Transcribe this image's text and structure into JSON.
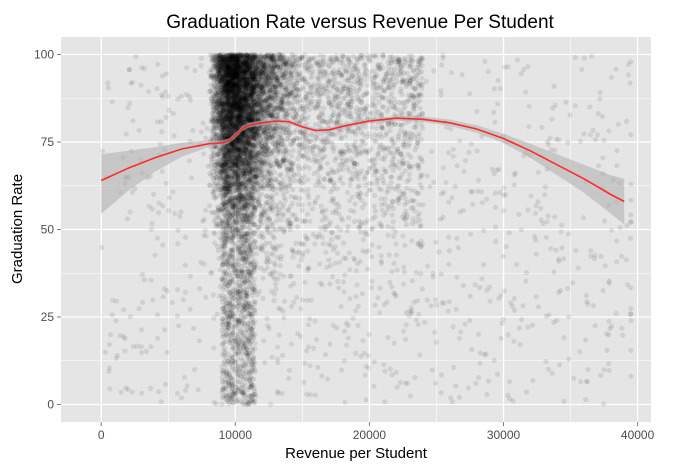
{
  "chart_data": {
    "type": "scatter",
    "title": "Graduation Rate versus Revenue Per Student",
    "xlabel": "Revenue per Student",
    "ylabel": "Graduation Rate",
    "xlim": [
      -3000,
      41000
    ],
    "ylim": [
      -5,
      105
    ],
    "x_ticks": [
      0,
      10000,
      20000,
      30000,
      40000
    ],
    "x_tick_labels": [
      "0",
      "10000",
      "20000",
      "30000",
      "40000"
    ],
    "y_ticks": [
      0,
      25,
      50,
      75,
      100
    ],
    "y_tick_labels": [
      "0",
      "25",
      "50",
      "75",
      "100"
    ],
    "grid": true,
    "legend": "none",
    "colors": {
      "panel": "#e5e5e5",
      "grid": "#ffffff",
      "points": "#000000",
      "smooth_line": "#ff2a2a",
      "confidence_band": "#b3b3b3"
    },
    "smooth_line": {
      "x": [
        0,
        2000,
        4000,
        6000,
        8000,
        9000,
        9500,
        10000,
        10500,
        11000,
        12000,
        13000,
        14000,
        15000,
        16000,
        17000,
        18000,
        20000,
        22000,
        24000,
        26000,
        28000,
        30000,
        32000,
        34000,
        36000,
        38000,
        39000
      ],
      "y": [
        64,
        67.5,
        70.5,
        73,
        74.5,
        74.7,
        75.3,
        76.8,
        78.8,
        79.8,
        80.5,
        81,
        80.8,
        79.3,
        78.3,
        78.5,
        79.5,
        81,
        81.8,
        81.5,
        80.5,
        78.7,
        76,
        72.5,
        68.5,
        64.5,
        60,
        58
      ],
      "band_upper": [
        71.5,
        72.5,
        73.5,
        74.8,
        75.5,
        75.5,
        76,
        77.5,
        79.5,
        80.5,
        81.2,
        81.7,
        81.5,
        80,
        79,
        79.2,
        80.2,
        81.7,
        82.5,
        82.3,
        81.4,
        79.8,
        77.3,
        74.5,
        71.5,
        68.5,
        65.5,
        64.5
      ],
      "band_lower": [
        54.5,
        61,
        66.5,
        70.8,
        73.5,
        74,
        74.6,
        76.1,
        78.1,
        79.1,
        79.8,
        80.3,
        80.1,
        78.6,
        77.6,
        77.8,
        78.8,
        80.3,
        81.1,
        80.7,
        79.6,
        77.6,
        74.7,
        70.5,
        65.5,
        60.5,
        54.5,
        51.5
      ]
    },
    "point_distribution": {
      "count": 9000,
      "opacity": 0.09,
      "x_range": [
        0,
        40000
      ],
      "y_range": [
        0,
        100
      ],
      "dense_x_range": [
        8000,
        18000
      ],
      "dense_y_range": [
        60,
        100
      ]
    }
  }
}
